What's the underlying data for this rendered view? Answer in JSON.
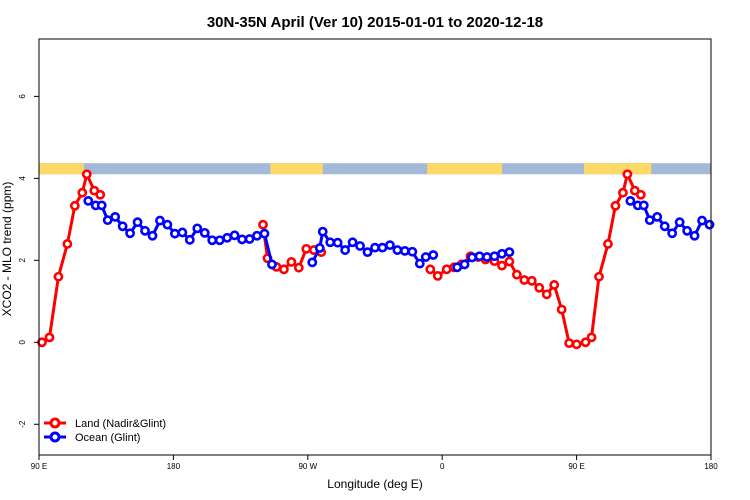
{
  "chart_data": {
    "type": "line",
    "title": "30N-35N April (Ver 10)   2015-01-01 to 2020-12-18",
    "xlabel": "Longitude (deg E)",
    "ylabel": "XCO2 - MLO trend (ppm)",
    "xlim": [
      0,
      450
    ],
    "ylim": [
      -2.75,
      7.4
    ],
    "x_ticks": [
      {
        "value": 0,
        "label": "90 E"
      },
      {
        "value": 90,
        "label": "180"
      },
      {
        "value": 180,
        "label": "90 W"
      },
      {
        "value": 270,
        "label": "0"
      },
      {
        "value": 360,
        "label": "90 E"
      },
      {
        "value": 450,
        "label": "180"
      }
    ],
    "y_ticks": [
      -2,
      0,
      2,
      4,
      6
    ],
    "grid": false,
    "legend_position": "bottom-left",
    "land_ocean_strip": {
      "y_range": [
        4.1,
        4.37
      ],
      "land_color": "#FFD966",
      "ocean_color": "#A4B9D8",
      "land_spans": [
        [
          0,
          30
        ],
        [
          155,
          190
        ],
        [
          260,
          310
        ],
        [
          365,
          410
        ]
      ]
    },
    "series": [
      {
        "name": "Land (Nadir&Glint)",
        "color": "#FF0000",
        "segments": [
          [
            [
              2,
              0.0
            ],
            [
              7,
              0.12
            ],
            [
              13,
              1.6
            ],
            [
              19,
              2.4
            ],
            [
              24,
              3.33
            ],
            [
              29,
              3.65
            ],
            [
              32,
              4.1
            ],
            [
              37,
              3.7
            ],
            [
              41,
              3.6
            ]
          ],
          [
            [
              150,
              2.87
            ],
            [
              153,
              2.05
            ],
            [
              159,
              1.84
            ],
            [
              164,
              1.78
            ],
            [
              169,
              1.96
            ],
            [
              174,
              1.82
            ],
            [
              179,
              2.28
            ],
            [
              184,
              2.25
            ],
            [
              189,
              2.2
            ]
          ],
          [
            [
              262,
              1.78
            ],
            [
              267,
              1.62
            ],
            [
              273,
              1.78
            ],
            [
              278,
              1.83
            ],
            [
              283,
              1.9
            ],
            [
              289,
              2.1
            ],
            [
              294,
              2.08
            ],
            [
              299,
              2.02
            ],
            [
              305,
              1.98
            ],
            [
              310,
              1.87
            ],
            [
              315,
              1.97
            ],
            [
              320,
              1.65
            ],
            [
              325,
              1.52
            ],
            [
              330,
              1.5
            ],
            [
              335,
              1.33
            ],
            [
              340,
              1.17
            ],
            [
              345,
              1.4
            ],
            [
              350,
              0.8
            ],
            [
              355,
              -0.02
            ],
            [
              360,
              -0.05
            ],
            [
              366,
              0.0
            ],
            [
              370,
              0.12
            ],
            [
              375,
              1.6
            ],
            [
              381,
              2.4
            ],
            [
              386,
              3.33
            ],
            [
              391,
              3.65
            ],
            [
              394,
              4.1
            ],
            [
              399,
              3.7
            ],
            [
              403,
              3.6
            ]
          ]
        ]
      },
      {
        "name": "Ocean (Glint)",
        "color": "#0000FF",
        "segments": [
          [
            [
              33,
              3.45
            ],
            [
              38,
              3.34
            ],
            [
              42,
              3.34
            ],
            [
              46,
              2.98
            ],
            [
              51,
              3.06
            ],
            [
              56,
              2.83
            ],
            [
              61,
              2.66
            ],
            [
              66,
              2.93
            ],
            [
              71,
              2.72
            ],
            [
              76,
              2.6
            ],
            [
              81,
              2.97
            ],
            [
              86,
              2.87
            ],
            [
              91,
              2.65
            ],
            [
              96,
              2.68
            ],
            [
              101,
              2.5
            ],
            [
              106,
              2.78
            ],
            [
              111,
              2.67
            ],
            [
              116,
              2.49
            ],
            [
              121,
              2.49
            ],
            [
              126,
              2.55
            ],
            [
              131,
              2.61
            ],
            [
              136,
              2.51
            ],
            [
              141,
              2.52
            ],
            [
              146,
              2.6
            ],
            [
              151,
              2.65
            ],
            [
              156,
              1.9
            ]
          ],
          [
            [
              183,
              1.95
            ],
            [
              188,
              2.3
            ],
            [
              190,
              2.7
            ],
            [
              195,
              2.44
            ],
            [
              200,
              2.43
            ],
            [
              205,
              2.25
            ],
            [
              210,
              2.44
            ],
            [
              215,
              2.35
            ],
            [
              220,
              2.2
            ],
            [
              225,
              2.31
            ],
            [
              230,
              2.31
            ],
            [
              235,
              2.37
            ],
            [
              240,
              2.25
            ],
            [
              245,
              2.23
            ],
            [
              250,
              2.21
            ],
            [
              255,
              1.92
            ]
          ],
          [
            [
              259,
              2.08
            ],
            [
              264,
              2.13
            ]
          ],
          [
            [
              280,
              1.83
            ],
            [
              285,
              1.9
            ],
            [
              290,
              2.07
            ],
            [
              295,
              2.1
            ],
            [
              300,
              2.08
            ],
            [
              305,
              2.1
            ],
            [
              310,
              2.16
            ],
            [
              315,
              2.2
            ]
          ],
          [
            [
              396,
              3.45
            ],
            [
              401,
              3.34
            ],
            [
              405,
              3.34
            ],
            [
              409,
              2.98
            ],
            [
              414,
              3.06
            ],
            [
              419,
              2.83
            ],
            [
              424,
              2.66
            ],
            [
              429,
              2.93
            ],
            [
              434,
              2.72
            ],
            [
              439,
              2.6
            ],
            [
              444,
              2.97
            ],
            [
              449,
              2.87
            ]
          ]
        ]
      }
    ]
  }
}
